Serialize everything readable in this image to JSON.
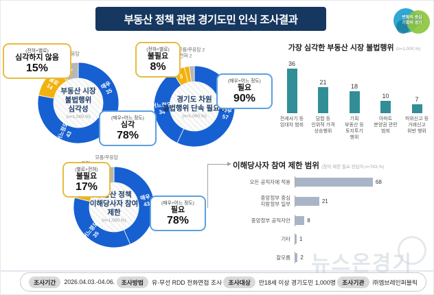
{
  "header": {
    "title": "부동산 정책 관련 경기도민 인식 조사결과",
    "logo_slogan": "변화의 중심\n기회의 경기"
  },
  "chart_data": [
    {
      "type": "pie",
      "title": "부동산 시장 불법행위 심각성",
      "center_label": "부동산 시장\n불법행위\n심각성",
      "note": "(n=1,000,%)",
      "labels": [
        "매우",
        "어느정도",
        "별로",
        "전혀",
        "모름/무응답"
      ],
      "values": [
        35,
        43,
        14,
        1,
        7
      ],
      "segment_colors": [
        "blue",
        "blue",
        "yellow",
        "yellow",
        "gray"
      ],
      "callout_negative": {
        "formula": "(전혀+별로)",
        "label": "심각하지 않음",
        "pct": "15%"
      },
      "callout_positive": {
        "formula": "(매우+어느 정도)",
        "label": "심각",
        "pct": "78%"
      }
    },
    {
      "type": "pie",
      "title": "경기도 차원 불법행위 단속 필요성",
      "center_label": "경기도 차원\n불법행위 단속 필요성",
      "note": "(n=1,000,%)",
      "labels": [
        "매우",
        "어느정도",
        "별로",
        "전혀",
        "모름/무응답"
      ],
      "values": [
        57,
        34,
        5,
        2,
        2
      ],
      "segment_colors": [
        "blue",
        "blue",
        "yellow",
        "yellow",
        "gray"
      ],
      "callout_negative": {
        "formula": "(전혀+별로)",
        "label": "불필요",
        "pct": "8%"
      },
      "callout_positive": {
        "formula": "(매우+어느 정도)",
        "label": "필요",
        "pct": "90%"
      }
    },
    {
      "type": "pie",
      "title": "부동산 정책 이해당사자 참여 제한",
      "center_label": "부동산 정책\n이해당사자 참여\n제한",
      "note": "(n=1,000,%)",
      "labels": [
        "매우",
        "어느정도",
        "별로",
        "전혀",
        "모름/무응답"
      ],
      "values": [
        43,
        35,
        12,
        4,
        5
      ],
      "segment_colors": [
        "blue",
        "blue",
        "yellow",
        "yellow",
        "gray"
      ],
      "callout_negative": {
        "formula": "(별로+전혀)",
        "label": "불필요",
        "pct": "17%"
      },
      "callout_positive": {
        "formula": "(매우+어느 정도)",
        "label": "필요",
        "pct": "78%"
      }
    },
    {
      "type": "bar",
      "title": "가장 심각한 부동산 시장 불법행위",
      "note": "(n=1,000,%)",
      "categories": [
        "전세사기 등\n임대차 범죄",
        "담합 등\n인위적 가격\n상승행위",
        "기획\n부동산 등\n토지투기\n행위",
        "아파트\n분양권 관련\n범죄",
        "허위신고 등\n거래신고\n위반 행위"
      ],
      "values": [
        36,
        21,
        18,
        10,
        7
      ],
      "ylim": [
        0,
        40
      ]
    },
    {
      "type": "bar",
      "orientation": "horizontal",
      "title": "이해당사자 참여 제한 범위",
      "note": "(참여 제한 필요 응답자,n=783,%)",
      "categories": [
        "모든 공직자에 적용",
        "중앙정부 중심\n지방정부 일부",
        "중앙정부 공직자만",
        "기타",
        "잘모름"
      ],
      "values": [
        68,
        21,
        8,
        1,
        2
      ],
      "xlim": [
        0,
        75
      ]
    }
  ],
  "footer": {
    "items": [
      {
        "badge": "조사기간",
        "value": "2026.04.03.-04.06."
      },
      {
        "badge": "조사방법",
        "value": "유·무선 RDD 전화면접 조사"
      },
      {
        "badge": "조사대상",
        "value": "만18세 이상 경기도민 1,000명"
      },
      {
        "badge": "조사기관",
        "value": "㈜엠브레인퍼블릭"
      }
    ]
  },
  "watermark": "뉴스온경기",
  "colors": {
    "header_bg": "#16375f",
    "segment": {
      "blue": "#1660d2",
      "yellow": "#f2b20d",
      "gray": "#b7b7b7"
    },
    "bar_teal": "#318e96",
    "hbar_fill": "#a9b5c7",
    "callout_positive_border": "#5aa0e0",
    "callout_negative_border": "#e7bb3e",
    "logo_blue": "#2fa8d5",
    "logo_green": "#8cc63e",
    "watermark": "#c5ced9"
  }
}
